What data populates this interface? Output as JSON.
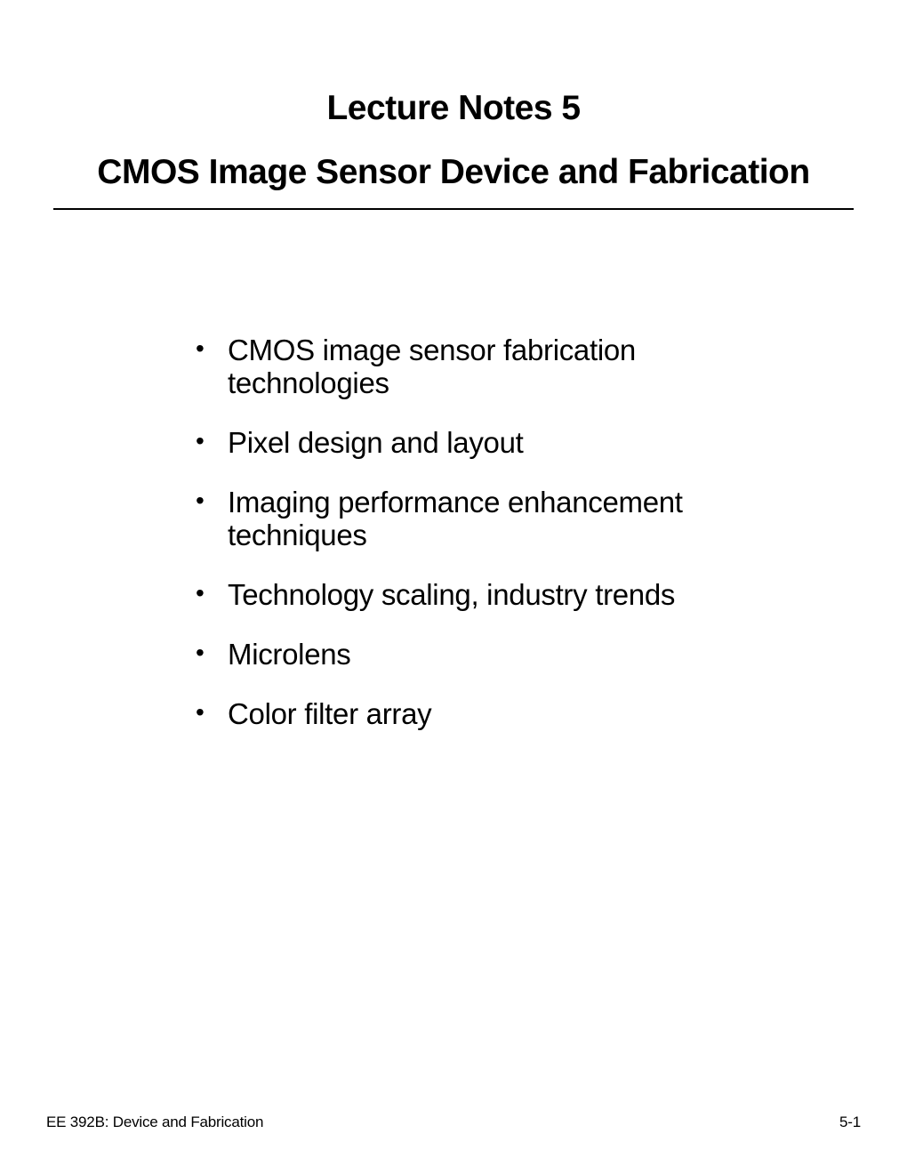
{
  "title": {
    "line1": "Lecture Notes 5",
    "line2": "CMOS Image Sensor Device and Fabrication"
  },
  "bullets": [
    "CMOS image sensor fabrication technologies",
    "Pixel design and layout",
    "Imaging performance enhancement techniques",
    "Technology scaling, industry trends",
    "Microlens",
    "Color filter array"
  ],
  "footer": {
    "left": "EE 392B: Device and Fabrication",
    "right": "5-1"
  },
  "colors": {
    "text": "#000000",
    "background": "#ffffff",
    "rule": "#000000"
  }
}
